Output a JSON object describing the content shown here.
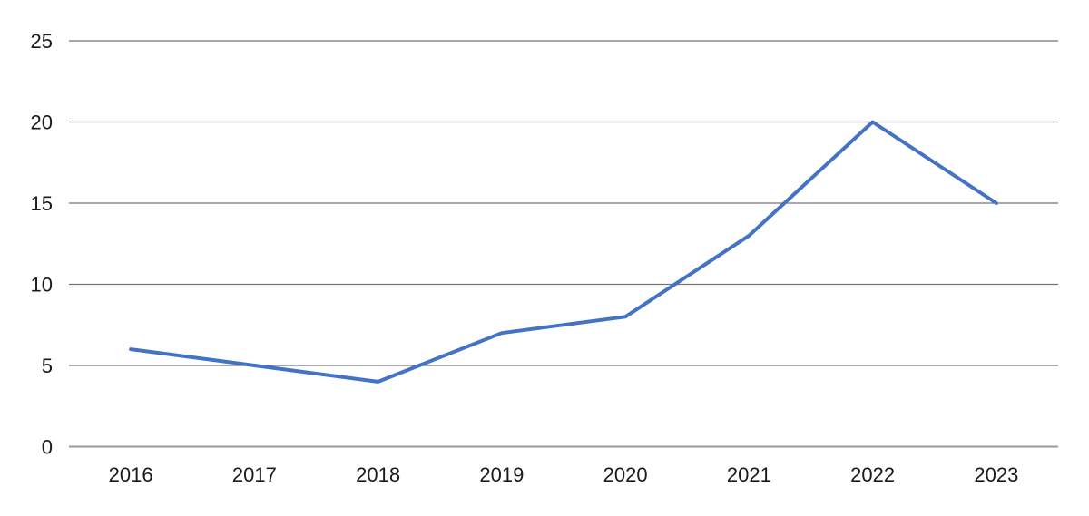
{
  "chart_data": {
    "type": "line",
    "title": "",
    "xlabel": "",
    "ylabel": "",
    "categories": [
      "2016",
      "2017",
      "2018",
      "2019",
      "2020",
      "2021",
      "2022",
      "2023"
    ],
    "series": [
      {
        "name": "series-1",
        "values": [
          6,
          5,
          4,
          7,
          8,
          13,
          20,
          15
        ],
        "color": "#4472C4"
      }
    ],
    "ylim": [
      0,
      25
    ],
    "yticks": [
      0,
      5,
      10,
      15,
      20,
      25
    ],
    "ytick_labels": [
      "0",
      "5",
      "10",
      "15",
      "20",
      "25"
    ],
    "grid": true,
    "legend_position": "none"
  },
  "colors": {
    "line": "#4472C4",
    "gridline": "#737373",
    "zero_line": "#9a9a9a",
    "text": "#1a1a1a",
    "background": "#ffffff"
  }
}
